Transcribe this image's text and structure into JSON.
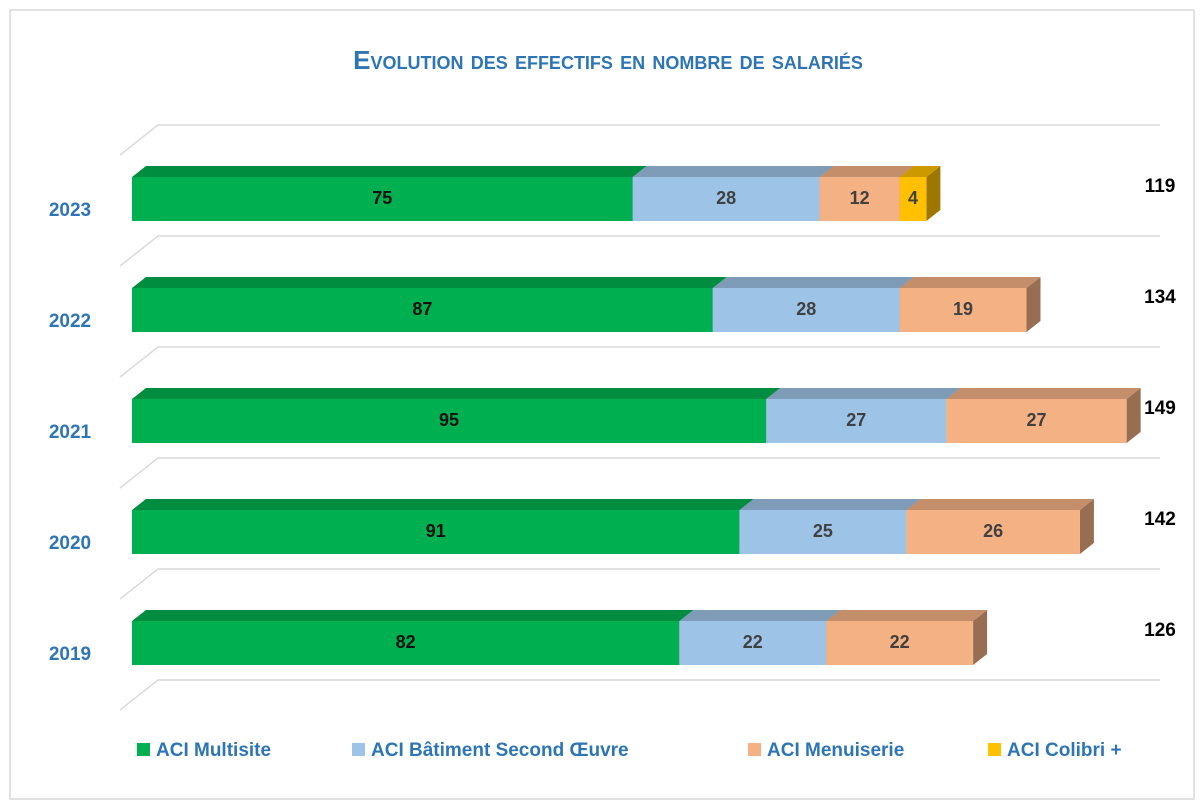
{
  "chart_data": {
    "type": "bar3d-stacked-horizontal",
    "title": "Evolution des effectifs en nombre de salariés",
    "categories": [
      "2023",
      "2022",
      "2021",
      "2020",
      "2019"
    ],
    "series": [
      {
        "name": "ACI Multisite",
        "color": "#00B050",
        "values": [
          75,
          87,
          95,
          91,
          82
        ]
      },
      {
        "name": "ACI Bâtiment Second Œuvre",
        "color": "#9DC3E6",
        "values": [
          28,
          28,
          27,
          25,
          22
        ]
      },
      {
        "name": "ACI Menuiserie",
        "color": "#F4B183",
        "values": [
          12,
          19,
          27,
          26,
          22
        ]
      },
      {
        "name": "ACI Colibri +",
        "color": "#FFC000",
        "values": [
          4,
          null,
          null,
          null,
          null
        ]
      }
    ],
    "totals": [
      119,
      134,
      149,
      142,
      126
    ],
    "xlim": [
      0,
      154
    ],
    "legend": "bottom"
  }
}
